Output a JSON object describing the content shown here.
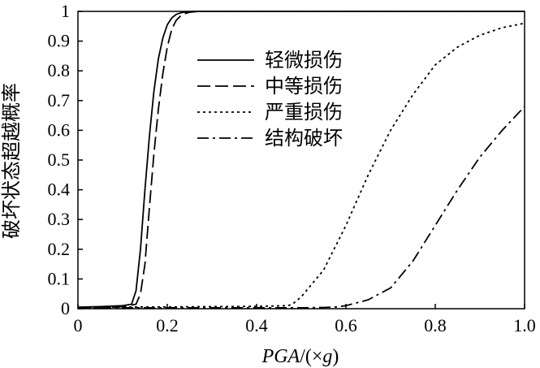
{
  "chart_data": {
    "type": "line",
    "xlabel_parts": [
      "PGA",
      "/(×",
      "g",
      ")"
    ],
    "ylabel": "破坏状态超越概率",
    "xlim": [
      0,
      1.0
    ],
    "ylim": [
      0,
      1
    ],
    "xticks": [
      "0",
      "0.2",
      "0.4",
      "0.6",
      "0.8",
      "1.0"
    ],
    "yticks": [
      "0",
      "0.1",
      "0.2",
      "0.3",
      "0.4",
      "0.5",
      "0.6",
      "0.7",
      "0.8",
      "0.9",
      "1"
    ],
    "legend_position": "upper-middle",
    "grid": false,
    "series": [
      {
        "name": "轻微损伤",
        "style": "solid",
        "x": [
          0,
          0.05,
          0.1,
          0.12,
          0.13,
          0.14,
          0.15,
          0.16,
          0.17,
          0.18,
          0.19,
          0.2,
          0.21,
          0.22,
          0.23,
          0.24,
          0.26,
          0.28,
          0.3,
          0.4,
          0.6,
          0.8,
          1.0
        ],
        "y": [
          0.005,
          0.007,
          0.01,
          0.015,
          0.06,
          0.2,
          0.4,
          0.58,
          0.73,
          0.84,
          0.91,
          0.955,
          0.978,
          0.99,
          0.995,
          0.998,
          1,
          1,
          1,
          1,
          1,
          1,
          1
        ]
      },
      {
        "name": "中等损伤",
        "style": "dashed",
        "x": [
          0,
          0.05,
          0.1,
          0.13,
          0.14,
          0.15,
          0.16,
          0.17,
          0.18,
          0.19,
          0.2,
          0.21,
          0.22,
          0.23,
          0.24,
          0.25,
          0.27,
          0.29,
          0.3,
          0.4,
          0.6,
          0.8,
          1.0
        ],
        "y": [
          0.002,
          0.004,
          0.007,
          0.015,
          0.05,
          0.15,
          0.34,
          0.52,
          0.67,
          0.79,
          0.88,
          0.94,
          0.97,
          0.985,
          0.993,
          0.997,
          1,
          1,
          1,
          1,
          1,
          1,
          1
        ]
      },
      {
        "name": "严重损伤",
        "style": "dotted",
        "x": [
          0,
          0.2,
          0.4,
          0.47,
          0.48,
          0.5,
          0.55,
          0.6,
          0.65,
          0.7,
          0.75,
          0.8,
          0.85,
          0.9,
          0.95,
          1.0
        ],
        "y": [
          0.005,
          0.006,
          0.008,
          0.01,
          0.015,
          0.04,
          0.13,
          0.28,
          0.45,
          0.6,
          0.72,
          0.82,
          0.88,
          0.92,
          0.945,
          0.96
        ]
      },
      {
        "name": "结构破坏",
        "style": "dashdot",
        "x": [
          0,
          0.4,
          0.5,
          0.55,
          0.58,
          0.6,
          0.65,
          0.7,
          0.75,
          0.8,
          0.85,
          0.9,
          0.95,
          1.0
        ],
        "y": [
          0.003,
          0.003,
          0.003,
          0.004,
          0.006,
          0.01,
          0.03,
          0.07,
          0.16,
          0.28,
          0.4,
          0.51,
          0.6,
          0.68
        ]
      }
    ]
  }
}
